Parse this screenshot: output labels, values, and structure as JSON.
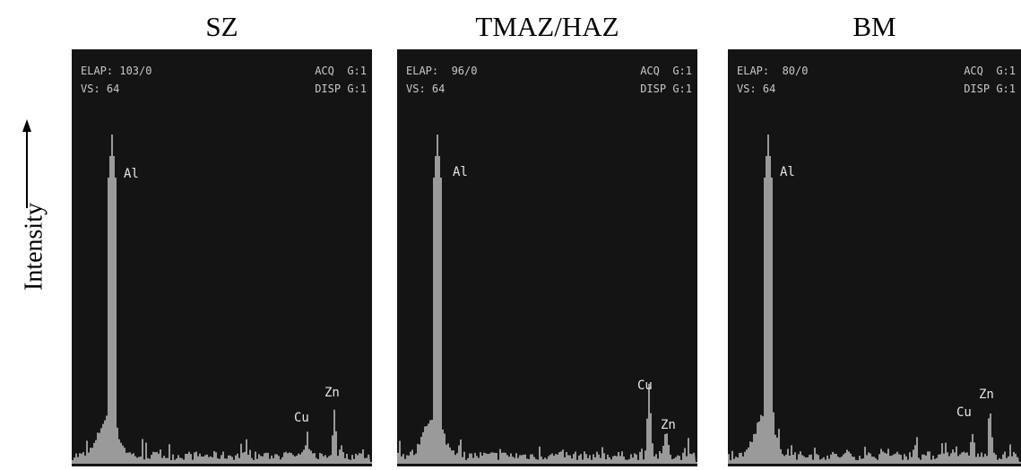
{
  "y_axis_label": "Intensity",
  "panels": [
    {
      "title": "SZ",
      "elap": "ELAP: 103/0",
      "vs": "VS: 64",
      "acq": "ACQ  G:1",
      "disp": "DISP G:1",
      "peaks": [
        "Al",
        "Cu",
        "Zn"
      ]
    },
    {
      "title": "TMAZ/HAZ",
      "elap": "ELAP:  96/0",
      "vs": "VS: 64",
      "acq": "ACQ  G:1",
      "disp": "DISP G:1",
      "peaks": [
        "Al",
        "Cu",
        "Zn"
      ]
    },
    {
      "title": "BM",
      "elap": "ELAP:  80/0",
      "vs": "VS: 64",
      "acq": "ACQ  G:1",
      "disp": "DISP G:1",
      "peaks": [
        "Al",
        "Cu",
        "Zn"
      ]
    }
  ]
}
